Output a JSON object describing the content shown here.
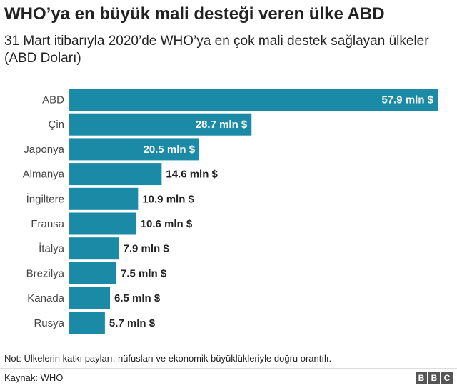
{
  "header": {
    "title": "WHO’ya en büyük mali desteği veren ülke ABD",
    "subtitle": "31 Mart itibarıyla 2020’de WHO’ya en çok mali destek sağlayan ülkeler (ABD Doları)"
  },
  "footer": {
    "note": "Not: Ülkelerin katkı payları, nüfusları ve ekonomik büyüklükleriyle doğru orantılı.",
    "source": "Kaynak: WHO",
    "logo": [
      "B",
      "B",
      "C"
    ]
  },
  "colors": {
    "bar": "#1a8aa6",
    "label_inside": "#ffffff",
    "label_outside": "#222222"
  },
  "chart_data": {
    "type": "bar",
    "orientation": "horizontal",
    "categories": [
      "ABD",
      "Çin",
      "Japonya",
      "Almanya",
      "İngiltere",
      "Fransa",
      "İtalya",
      "Brezilya",
      "Kanada",
      "Rusya"
    ],
    "values": [
      57.9,
      28.7,
      20.5,
      14.6,
      10.9,
      10.6,
      7.9,
      7.5,
      6.5,
      5.7
    ],
    "value_labels": [
      "57.9 mln $",
      "28.7 mln $",
      "20.5 mln $",
      "14.6 mln $",
      "10.9 mln $",
      "10.6 mln $",
      "7.9 mln $",
      "7.5 mln $",
      "6.5 mln $",
      "5.7 mln $"
    ],
    "xlim": [
      0,
      57.9
    ],
    "grid": false
  }
}
